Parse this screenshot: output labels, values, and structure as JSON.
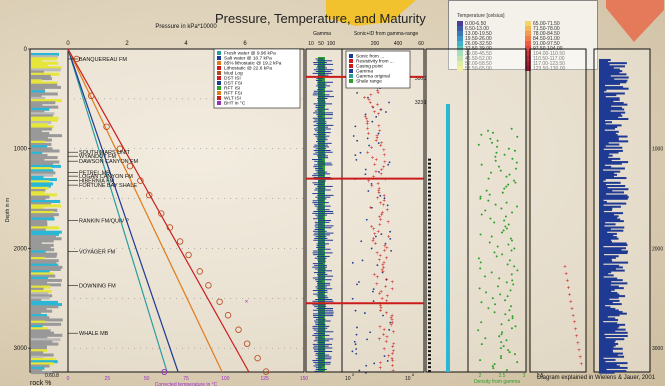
{
  "title": "Pressure, Temperature, and Maturity",
  "footnote": "Diagram explained in Wielens & Jauer, 2001",
  "axes": {
    "depth_label": "Depth in m",
    "depth_ticks": [
      "0",
      "1000",
      "2000",
      "3000"
    ],
    "pressure_label": "Pressure in kPa*10000",
    "pressure_ticks": [
      "0",
      "2",
      "4",
      "6"
    ],
    "temperature_label": "Corrected temperature in °C",
    "temperature_ticks": [
      "0",
      "25",
      "50",
      "75",
      "100",
      "125",
      "150"
    ],
    "rock_label": "rock %",
    "rock_ticks": "0.60.8",
    "gamma_label": "Gamma",
    "gamma_ticks": [
      "10",
      "50",
      "100"
    ],
    "sonic_label": "Sonic+ID from gamma-range",
    "sonic_ticks": [
      "200",
      "400",
      "60"
    ],
    "res_ticks": [
      "10",
      "10"
    ],
    "res_exp": "0",
    "res_exp2": "6",
    "density_label": "Density from gamma",
    "density_ticks": [
      "2",
      "2.5",
      "3"
    ],
    "vr_ticks": [
      "1.5"
    ],
    "inset_depths": [
      "3000",
      "3239"
    ],
    "right_depths": [
      "1000",
      "2000",
      "3000"
    ]
  },
  "formations": [
    {
      "name": "BANQUEREAU FM",
      "depth": 100
    },
    {
      "name": "SOUTH MARS UNIT",
      "depth": 1035
    },
    {
      "name": "WYANDOT FM",
      "depth": 1075
    },
    {
      "name": "DAWSON CANYON FM",
      "depth": 1125
    },
    {
      "name": "PETREL MB",
      "depth": 1240
    },
    {
      "name": "LOGAN CANYON FM",
      "depth": 1275
    },
    {
      "name": "HIBERNIA FM",
      "depth": 1320
    },
    {
      "name": "FORTUNE BAY SHALE",
      "depth": 1365
    },
    {
      "name": "RANKIN FM/QUIV ?",
      "depth": 1720
    },
    {
      "name": "VOYAGER FM",
      "depth": 2030
    },
    {
      "name": "DOWNING FM",
      "depth": 2370
    },
    {
      "name": "WHALE MB",
      "depth": 2850
    }
  ],
  "pressure_legend": [
    {
      "label": "Fresh water @ 9.96 kPa",
      "color": "#2a9d9d"
    },
    {
      "label": "Salt water @ 10.7 kPa",
      "color": "#1f3a93"
    },
    {
      "label": "85% lithostatic @ 19.2 kPa",
      "color": "#e07b1a"
    },
    {
      "label": "Lithostatic @ 22.6 kPa",
      "color": "#cc1b1b"
    },
    {
      "label": "Mud Log",
      "color": "#b5451b"
    },
    {
      "label": "DST ISI",
      "color": "#cc1b1b"
    },
    {
      "label": "DST FSI",
      "color": "#1f3a93"
    },
    {
      "label": "RFT ISI",
      "color": "#2aa02a"
    },
    {
      "label": "RFT FSI",
      "color": "#e07b1a"
    },
    {
      "label": "WLT ISI",
      "color": "#cc1b1b"
    },
    {
      "label": "BHT in °C",
      "color": "#9b30c0"
    }
  ],
  "log_legend": [
    {
      "label": "Sonic from ...",
      "color": "#1f3a93"
    },
    {
      "label": "Resistivity from ...",
      "color": "#cc1b1b"
    },
    {
      "label": "Casing point",
      "color": "#cc1b1b"
    },
    {
      "label": "Gamma",
      "color": "#1f3a93"
    },
    {
      "label": "Gamma original",
      "color": "#2a9d9d"
    },
    {
      "label": "Shale range",
      "color": "#2aa02a"
    }
  ],
  "temperature_legend": {
    "title": "Temperature [celsius]",
    "items": [
      {
        "label": "0.00-6.50",
        "color": "#4a3e96"
      },
      {
        "label": "6.50-13.00",
        "color": "#3d5aa8"
      },
      {
        "label": "13.00-19.50",
        "color": "#3a78b8"
      },
      {
        "label": "19.50-26.00",
        "color": "#3a96c4"
      },
      {
        "label": "26.00-32.50",
        "color": "#44b2c6"
      },
      {
        "label": "32.50-39.00",
        "color": "#58c2b2"
      },
      {
        "label": "39.00-45.50",
        "color": "#7ccd9a"
      },
      {
        "label": "45.50-52.00",
        "color": "#a3d686"
      },
      {
        "label": "52.00-58.50",
        "color": "#c9e07a"
      },
      {
        "label": "58.50-65.00",
        "color": "#e8e66e"
      },
      {
        "label": "65.00-71.50",
        "color": "#f3d464"
      },
      {
        "label": "71.50-78.00",
        "color": "#f4b85a"
      },
      {
        "label": "78.00-84.50",
        "color": "#f39a52"
      },
      {
        "label": "84.50-91.00",
        "color": "#ef7c4a"
      },
      {
        "label": "91.00-97.50",
        "color": "#e85e44"
      },
      {
        "label": "97.50-104.00",
        "color": "#de4640"
      },
      {
        "label": "104.00-110.50",
        "color": "#cf343c"
      },
      {
        "label": "110.50-117.00",
        "color": "#bd2838"
      },
      {
        "label": "117.00-123.50",
        "color": "#a81e34"
      },
      {
        "label": "123.50-130.00",
        "color": "#921530"
      }
    ]
  },
  "chart_data": {
    "type": "scatter",
    "title": "Pressure, Temperature, and Maturity",
    "depth_range_m": [
      0,
      3239
    ],
    "pressure_range_kpa10000": [
      0,
      8
    ],
    "temperature_range_c": [
      0,
      150
    ],
    "pressure_gradient_lines": [
      {
        "name": "Fresh water @ 9.96 kPa",
        "end_temperature_c": 63,
        "end_depth_m": 3239
      },
      {
        "name": "Salt water @ 10.7 kPa",
        "end_temperature_c": 70,
        "end_depth_m": 3239
      },
      {
        "name": "85% lithostatic @ 19.2 kPa",
        "end_temperature_c": 98,
        "end_depth_m": 3239
      },
      {
        "name": "Lithostatic @ 22.6 kPa",
        "end_temperature_c": 115,
        "end_depth_m": 3239
      }
    ],
    "mud_log_points": [
      [
        3,
        100
      ],
      [
        3,
        470
      ],
      [
        5,
        780
      ],
      [
        8,
        1000
      ],
      [
        10,
        1175
      ],
      [
        13,
        1320
      ],
      [
        15,
        1465
      ],
      [
        18,
        1650
      ],
      [
        20,
        1790
      ],
      [
        23,
        1930
      ],
      [
        25,
        2065
      ],
      [
        28,
        2230
      ],
      [
        30,
        2370
      ],
      [
        33,
        2535
      ],
      [
        35,
        2670
      ],
      [
        38,
        2815
      ],
      [
        40,
        2955
      ],
      [
        43,
        3100
      ],
      [
        45,
        3235
      ]
    ],
    "bht_points": [
      [
        55,
        2550
      ]
    ],
    "casing_points_m": [
      280,
      1300,
      2550
    ],
    "temperature_points": [
      [
        18,
        3239
      ]
    ]
  }
}
